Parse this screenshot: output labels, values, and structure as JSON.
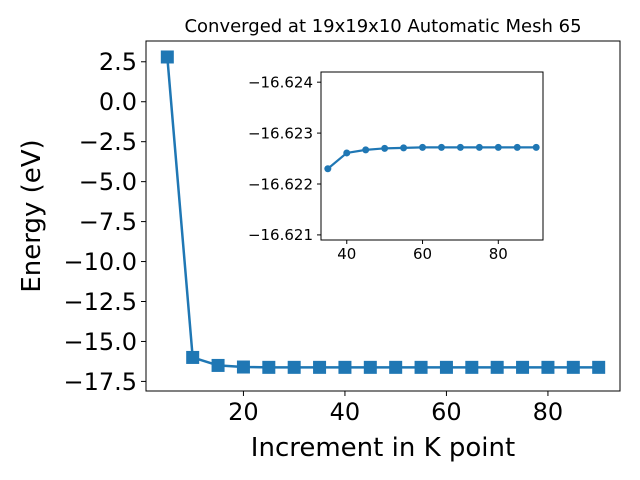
{
  "chart_data": [
    {
      "type": "line",
      "title": "Converged at 19x19x10 Automatic Mesh 65",
      "xlabel": "Increment in K point",
      "ylabel": "Energy (eV)",
      "xlim": [
        0.8,
        94.2
      ],
      "ylim": [
        -18.1,
        3.8
      ],
      "xticks": [
        20,
        40,
        60,
        80
      ],
      "xtick_labels": [
        "20",
        "40",
        "60",
        "80"
      ],
      "yticks": [
        2.5,
        0.0,
        -2.5,
        -5.0,
        -7.5,
        -10.0,
        -12.5,
        -15.0,
        -17.5
      ],
      "ytick_labels": [
        "2.5",
        "0.0",
        "−2.5",
        "−5.0",
        "−7.5",
        "−10.0",
        "−12.5",
        "−15.0",
        "−17.5"
      ],
      "grid": false,
      "marker": "square",
      "color": "#1f77b4",
      "series": [
        {
          "x": [
            5,
            10,
            15,
            20,
            25,
            30,
            35,
            40,
            45,
            50,
            55,
            60,
            65,
            70,
            75,
            80,
            85,
            90
          ],
          "y": [
            2.8,
            -16.0,
            -16.5,
            -16.6,
            -16.62,
            -16.62,
            -16.62,
            -16.62,
            -16.62,
            -16.62,
            -16.62,
            -16.62,
            -16.62,
            -16.62,
            -16.62,
            -16.62,
            -16.62,
            -16.62
          ]
        }
      ]
    },
    {
      "type": "line",
      "inset": true,
      "title": "",
      "xlabel": "",
      "ylabel": "",
      "xlim": [
        33.2,
        91.8
      ],
      "ylim": [
        -16.6209,
        -16.6242
      ],
      "y_inverted": true,
      "xticks": [
        40,
        60,
        80
      ],
      "xtick_labels": [
        "40",
        "60",
        "80"
      ],
      "yticks": [
        -16.624,
        -16.623,
        -16.622,
        -16.621
      ],
      "ytick_labels": [
        "−16.624",
        "−16.623",
        "−16.622",
        "−16.621"
      ],
      "grid": false,
      "marker": "circle",
      "color": "#1f77b4",
      "series": [
        {
          "x": [
            35,
            40,
            45,
            50,
            55,
            60,
            65,
            70,
            75,
            80,
            85,
            90
          ],
          "y": [
            -16.6223,
            -16.62261,
            -16.62267,
            -16.6227,
            -16.62271,
            -16.62272,
            -16.62272,
            -16.62272,
            -16.62272,
            -16.62272,
            -16.62272,
            -16.62272
          ]
        }
      ]
    }
  ]
}
